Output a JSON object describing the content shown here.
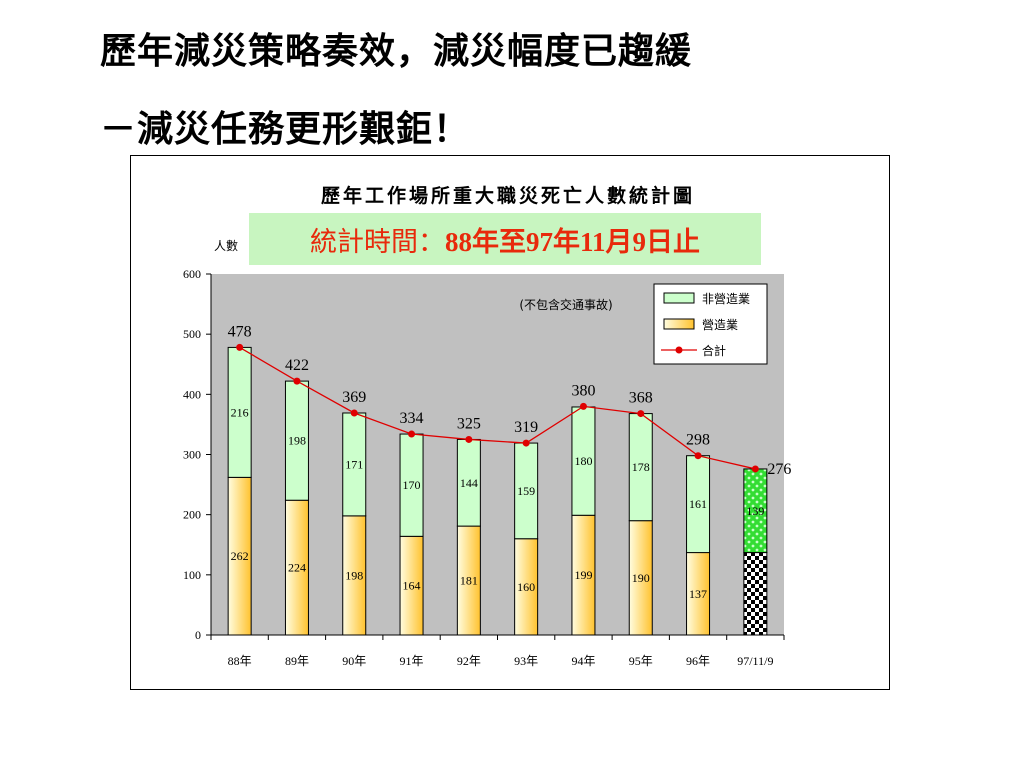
{
  "slide": {
    "title_line1": "歷年減災策略奏效，減災幅度已趨緩",
    "title_line2": "－減災任務更形艱鉅！"
  },
  "stamp": {
    "label": "統計時間：",
    "value": "88年至97年11月9日止"
  },
  "colors": {
    "plot_bg": "#c0c0c0",
    "non_construction": "#ccffcc",
    "construction_light": "#fffde0",
    "construction_dark": "#ffc22e",
    "total_line": "#e00000",
    "last_non_construction": "#33dd33",
    "stamp_bg": "#c8f5c0",
    "stamp_text": "#e8290b"
  },
  "chart_data": {
    "type": "bar",
    "stacked": true,
    "title": "歷年工作場所重大職災死亡人數統計圖",
    "ylabel": "人數",
    "note": "(不包含交通事故)",
    "ylim": [
      0,
      600
    ],
    "yticks": [
      0,
      100,
      200,
      300,
      400,
      500,
      600
    ],
    "grid": false,
    "legend_position": "top-right",
    "categories": [
      "88年",
      "89年",
      "90年",
      "91年",
      "92年",
      "93年",
      "94年",
      "95年",
      "96年",
      "97/11/9"
    ],
    "series": [
      {
        "name": "營造業",
        "values": [
          262,
          224,
          198,
          164,
          181,
          160,
          199,
          190,
          137,
          137
        ]
      },
      {
        "name": "非營造業",
        "values": [
          216,
          198,
          171,
          170,
          144,
          159,
          180,
          178,
          161,
          139
        ]
      }
    ],
    "line": {
      "name": "合計",
      "values": [
        478,
        422,
        369,
        334,
        325,
        319,
        380,
        368,
        298,
        276
      ]
    },
    "construction_labels": [
      "262",
      "224",
      "198",
      "164",
      "181",
      "160",
      "199",
      "190",
      "137",
      ""
    ],
    "non_construction_labels": [
      "216",
      "198",
      "171",
      "170",
      "144",
      "159",
      "180",
      "178",
      "161",
      "139"
    ],
    "total_labels": [
      "478",
      "422",
      "369",
      "334",
      "325",
      "319",
      "380",
      "368",
      "298",
      "276"
    ],
    "legend": [
      "非營造業",
      "營造業",
      "合計"
    ]
  }
}
